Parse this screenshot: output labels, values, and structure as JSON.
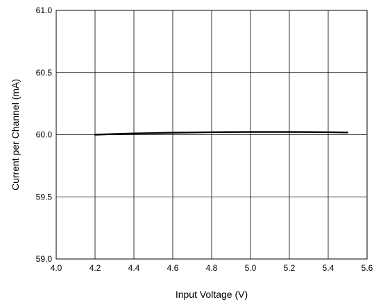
{
  "chart_data": {
    "type": "line",
    "title": "",
    "xlabel": "Input Voltage (V)",
    "ylabel": "Current per Channel (mA)",
    "xlim": [
      4.0,
      5.6
    ],
    "ylim": [
      59.0,
      61.0
    ],
    "x_ticks": [
      4.0,
      4.2,
      4.4,
      4.6,
      4.8,
      5.0,
      5.2,
      5.4,
      5.6
    ],
    "x_tick_labels": [
      "4.0",
      "4.2",
      "4.4",
      "4.6",
      "4.8",
      "5.0",
      "5.2",
      "5.4",
      "5.6"
    ],
    "y_ticks": [
      59.0,
      59.5,
      60.0,
      60.5,
      61.0
    ],
    "y_tick_labels": [
      "59.0",
      "59.5",
      "60.0",
      "60.5",
      "61.0"
    ],
    "grid": true,
    "legend": "none",
    "series": [
      {
        "color": "#000000",
        "x": [
          4.2,
          4.3,
          4.4,
          4.5,
          4.6,
          4.7,
          4.8,
          4.9,
          5.0,
          5.1,
          5.2,
          5.3,
          5.4,
          5.5
        ],
        "y": [
          60.0,
          60.005,
          60.01,
          60.013,
          60.016,
          60.018,
          60.02,
          60.021,
          60.022,
          60.022,
          60.022,
          60.021,
          60.02,
          60.018
        ]
      }
    ]
  }
}
